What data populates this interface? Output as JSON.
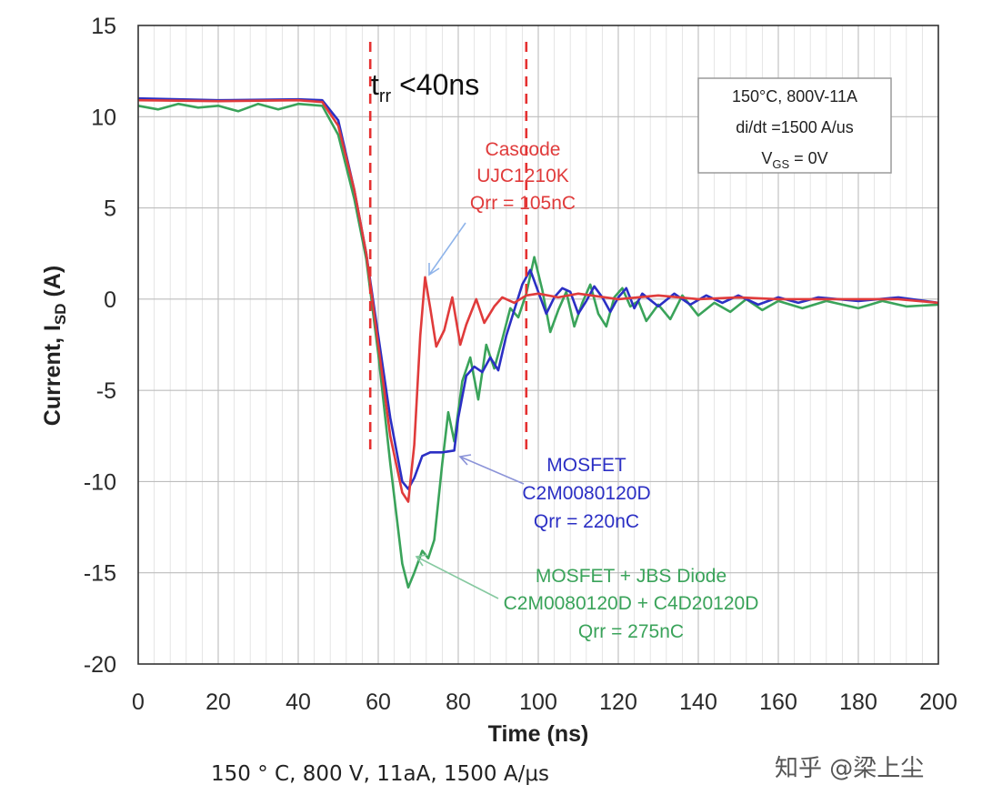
{
  "chart_data": {
    "type": "line",
    "xlabel": "Time (ns)",
    "ylabel_main": "Current, I",
    "ylabel_sub": "SD",
    "ylabel_tail": " (A)",
    "xlim": [
      0,
      200
    ],
    "ylim": [
      -20,
      15
    ],
    "x_ticks": [
      "0",
      "20",
      "40",
      "60",
      "80",
      "100",
      "120",
      "140",
      "160",
      "180",
      "200"
    ],
    "y_ticks": [
      "15",
      "10",
      "5",
      "0",
      "-5",
      "-10",
      "-15",
      "-20"
    ],
    "grid": true,
    "trr_label": {
      "t": "t",
      "sub": "rr",
      "rest": " <40ns"
    },
    "trr_markers_ns": [
      58,
      97
    ],
    "conditions": {
      "line1": "150°C, 800V-11A",
      "line2": "di/dt =1500 A/us",
      "line3_main": "V",
      "line3_sub": "GS",
      "line3_rest": " = 0V"
    },
    "annotations": {
      "cascode": [
        "Cascode",
        "UJC1210K",
        "Qrr = 105nC"
      ],
      "mosfet": [
        "MOSFET",
        "C2M0080120D",
        "Qrr = 220nC"
      ],
      "jbs": [
        "MOSFET + JBS Diode",
        "C2M0080120D  + C4D20120D",
        "Qrr = 275nC"
      ]
    },
    "series": [
      {
        "name": "Cascode UJC1210K",
        "color": "#e03b3b",
        "points": [
          [
            0,
            10.9
          ],
          [
            20,
            10.85
          ],
          [
            40,
            10.9
          ],
          [
            46,
            10.8
          ],
          [
            50,
            9.5
          ],
          [
            54,
            6.0
          ],
          [
            57,
            2.5
          ],
          [
            60,
            -2.5
          ],
          [
            63,
            -7.5
          ],
          [
            66,
            -10.6
          ],
          [
            67.5,
            -11.1
          ],
          [
            69,
            -8.0
          ],
          [
            70.5,
            -2.0
          ],
          [
            71.7,
            1.2
          ],
          [
            73,
            -0.5
          ],
          [
            74.5,
            -2.6
          ],
          [
            76.5,
            -1.7
          ],
          [
            78.5,
            0.1
          ],
          [
            80.5,
            -2.5
          ],
          [
            82,
            -1.4
          ],
          [
            84.5,
            0.0
          ],
          [
            86.5,
            -1.3
          ],
          [
            89,
            -0.4
          ],
          [
            91,
            0.1
          ],
          [
            94,
            -0.2
          ],
          [
            97,
            0.2
          ],
          [
            100,
            0.3
          ],
          [
            105,
            0.1
          ],
          [
            110,
            0.3
          ],
          [
            120,
            0.0
          ],
          [
            130,
            0.2
          ],
          [
            140,
            0.0
          ],
          [
            150,
            0.1
          ],
          [
            160,
            0.0
          ],
          [
            170,
            0.0
          ],
          [
            180,
            0.0
          ],
          [
            190,
            0.0
          ],
          [
            200,
            -0.2
          ]
        ]
      },
      {
        "name": "MOSFET C2M0080120D",
        "color": "#2b2fc4",
        "points": [
          [
            0,
            11.0
          ],
          [
            20,
            10.9
          ],
          [
            40,
            10.95
          ],
          [
            46,
            10.9
          ],
          [
            50,
            9.8
          ],
          [
            54,
            6.0
          ],
          [
            57,
            2.5
          ],
          [
            60,
            -2.0
          ],
          [
            63,
            -6.5
          ],
          [
            66,
            -10.0
          ],
          [
            67.5,
            -10.4
          ],
          [
            69,
            -9.8
          ],
          [
            71,
            -8.6
          ],
          [
            73,
            -8.4
          ],
          [
            76,
            -8.4
          ],
          [
            79,
            -8.3
          ],
          [
            80,
            -6.5
          ],
          [
            82,
            -4.2
          ],
          [
            84,
            -3.7
          ],
          [
            86,
            -4.0
          ],
          [
            88,
            -3.2
          ],
          [
            90,
            -3.9
          ],
          [
            92,
            -2.0
          ],
          [
            94,
            -0.6
          ],
          [
            96,
            0.8
          ],
          [
            98,
            1.6
          ],
          [
            100,
            0.4
          ],
          [
            102,
            -0.8
          ],
          [
            104,
            0.1
          ],
          [
            106,
            0.6
          ],
          [
            108,
            0.4
          ],
          [
            110,
            -0.8
          ],
          [
            112,
            -0.1
          ],
          [
            114,
            0.7
          ],
          [
            116,
            0.1
          ],
          [
            118,
            -0.7
          ],
          [
            120,
            0.1
          ],
          [
            122,
            0.6
          ],
          [
            124,
            -0.5
          ],
          [
            126,
            0.3
          ],
          [
            130,
            -0.4
          ],
          [
            134,
            0.3
          ],
          [
            138,
            -0.3
          ],
          [
            142,
            0.2
          ],
          [
            146,
            -0.2
          ],
          [
            150,
            0.2
          ],
          [
            155,
            -0.3
          ],
          [
            160,
            0.1
          ],
          [
            165,
            -0.2
          ],
          [
            170,
            0.1
          ],
          [
            180,
            -0.1
          ],
          [
            190,
            0.1
          ],
          [
            200,
            -0.2
          ]
        ]
      },
      {
        "name": "MOSFET + JBS Diode C2M0080120D + C4D20120D",
        "color": "#3aa35a",
        "points": [
          [
            0,
            10.6
          ],
          [
            5,
            10.4
          ],
          [
            10,
            10.7
          ],
          [
            15,
            10.5
          ],
          [
            20,
            10.6
          ],
          [
            25,
            10.3
          ],
          [
            30,
            10.7
          ],
          [
            35,
            10.4
          ],
          [
            40,
            10.7
          ],
          [
            46,
            10.6
          ],
          [
            50,
            9.0
          ],
          [
            54,
            5.5
          ],
          [
            57,
            2.2
          ],
          [
            60,
            -3.0
          ],
          [
            63,
            -9.0
          ],
          [
            66,
            -14.5
          ],
          [
            67.5,
            -15.8
          ],
          [
            69,
            -15.0
          ],
          [
            71,
            -13.8
          ],
          [
            72.5,
            -14.2
          ],
          [
            74,
            -13.2
          ],
          [
            76,
            -9.0
          ],
          [
            77.5,
            -6.2
          ],
          [
            79,
            -7.8
          ],
          [
            81,
            -4.5
          ],
          [
            83,
            -3.2
          ],
          [
            85,
            -5.5
          ],
          [
            87,
            -2.5
          ],
          [
            89,
            -3.8
          ],
          [
            91,
            -2.2
          ],
          [
            93,
            -0.5
          ],
          [
            95,
            -1.0
          ],
          [
            97,
            0.3
          ],
          [
            99,
            2.3
          ],
          [
            101,
            0.5
          ],
          [
            103,
            -1.8
          ],
          [
            105,
            -0.6
          ],
          [
            107,
            0.4
          ],
          [
            109,
            -1.5
          ],
          [
            111,
            -0.2
          ],
          [
            113,
            0.8
          ],
          [
            115,
            -0.8
          ],
          [
            117,
            -1.5
          ],
          [
            119,
            0.1
          ],
          [
            121,
            0.6
          ],
          [
            123,
            -0.4
          ],
          [
            125,
            -0.1
          ],
          [
            127,
            -1.2
          ],
          [
            130,
            -0.3
          ],
          [
            133,
            -1.1
          ],
          [
            136,
            0.2
          ],
          [
            140,
            -0.9
          ],
          [
            144,
            -0.2
          ],
          [
            148,
            -0.7
          ],
          [
            152,
            0.0
          ],
          [
            156,
            -0.6
          ],
          [
            160,
            -0.1
          ],
          [
            166,
            -0.5
          ],
          [
            172,
            -0.1
          ],
          [
            180,
            -0.5
          ],
          [
            186,
            -0.1
          ],
          [
            192,
            -0.4
          ],
          [
            200,
            -0.3
          ]
        ]
      }
    ]
  },
  "caption": "150 °   C, 800 V, 11aA, 1500 A/μs",
  "watermark": "知乎 @梁上尘"
}
